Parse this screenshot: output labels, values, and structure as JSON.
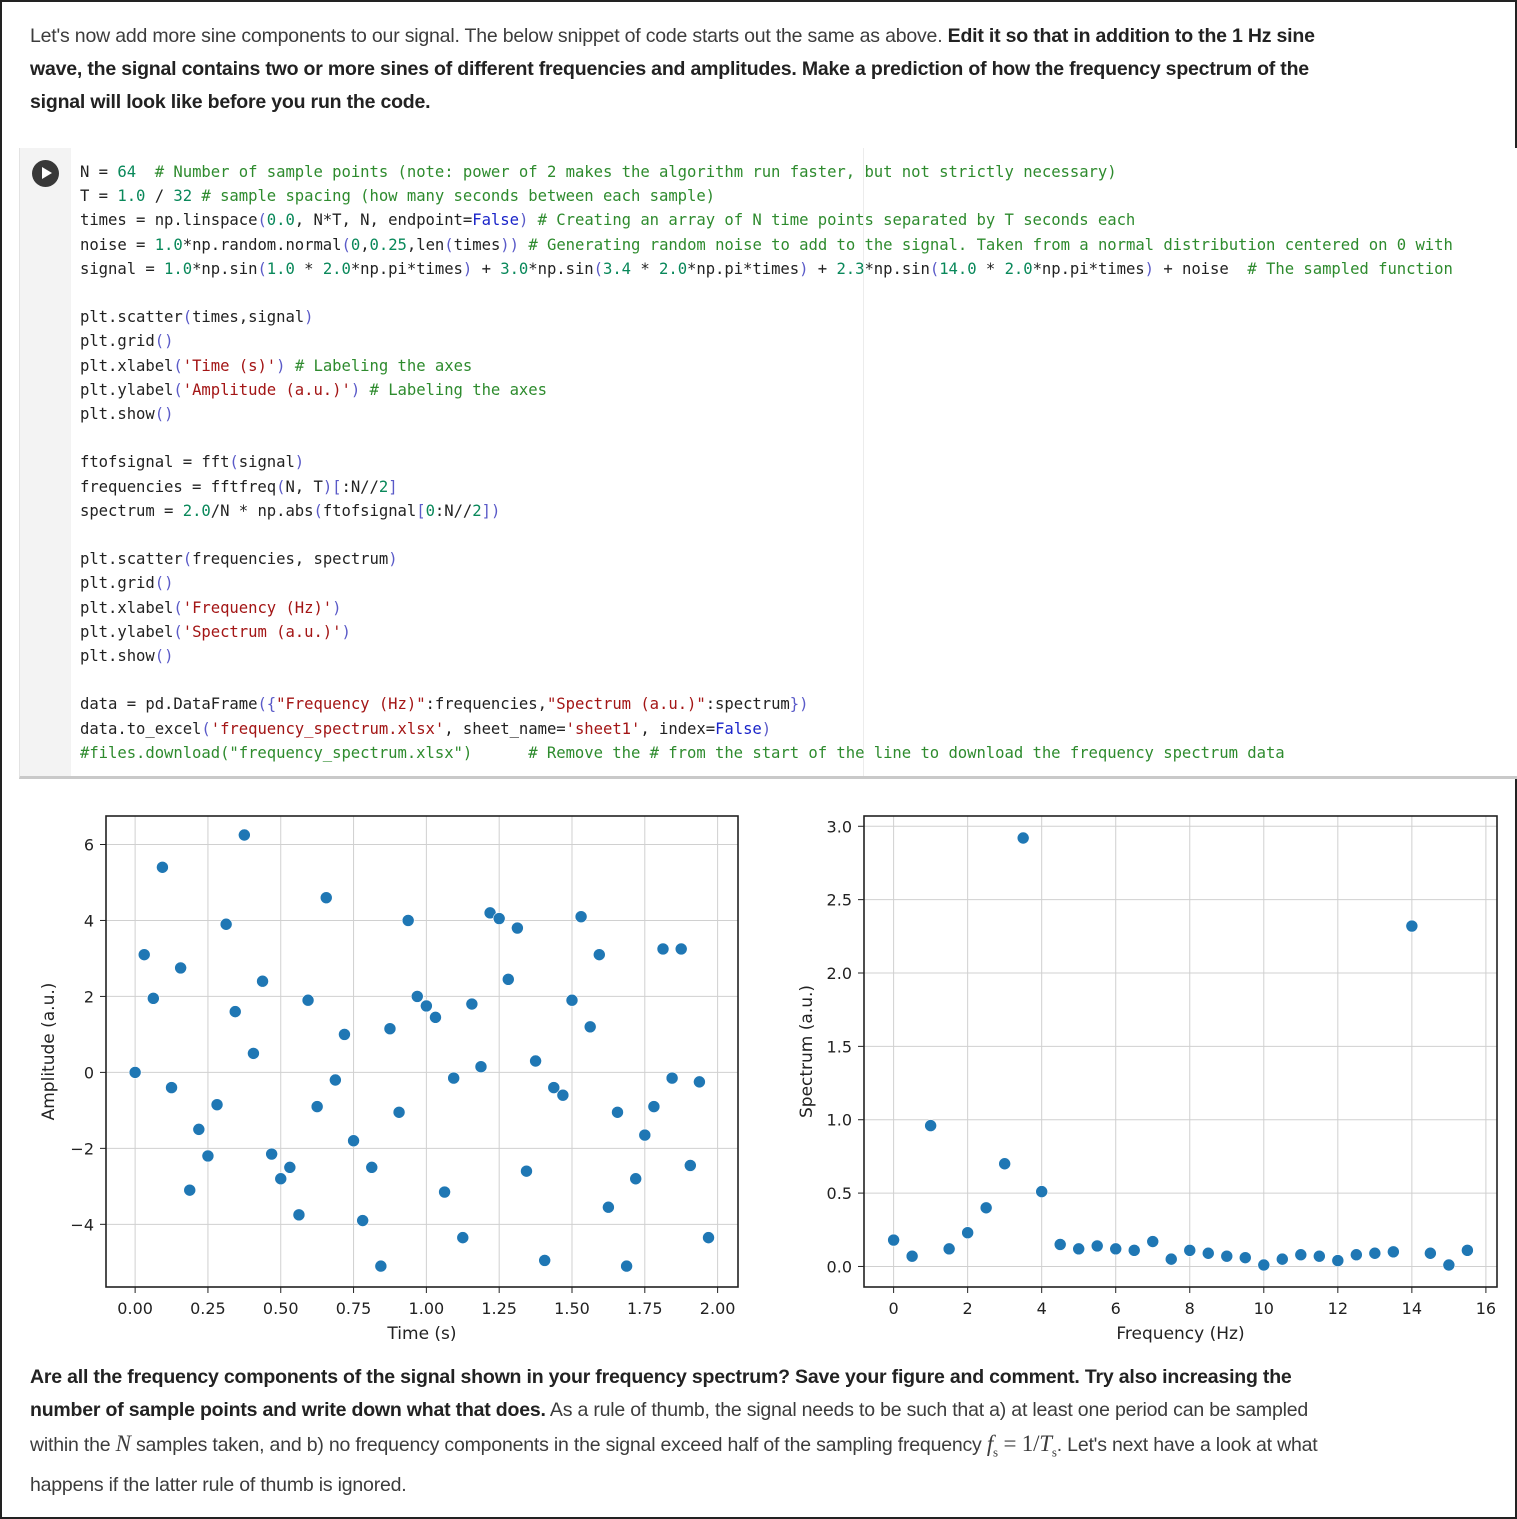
{
  "intro": {
    "plain": "Let's now add more sine components to our signal. The below snippet of code starts out the same as above. ",
    "bold": "Edit it so that in addition to the 1 Hz sine wave, the signal contains two or more sines of different frequencies and amplitudes. Make a prediction of how the frequency spectrum of the signal will look like before you run the code."
  },
  "code_cell": {
    "run_button_label": "Run cell",
    "lines": [
      "N = 64  # Number of sample points (note: power of 2 makes the algorithm run faster, but not strictly necessary)",
      "T = 1.0 / 32 # sample spacing (how many seconds between each sample)",
      "times = np.linspace(0.0, N*T, N, endpoint=False) # Creating an array of N time points separated by T seconds each",
      "noise = 1.0*np.random.normal(0,0.25,len(times)) # Generating random noise to add to the signal. Taken from a normal distribution centered on 0 with",
      "signal = 1.0*np.sin(1.0 * 2.0*np.pi*times) + 3.0*np.sin(3.4 * 2.0*np.pi*times) + 2.3*np.sin(14.0 * 2.0*np.pi*times) + noise  # The sampled function",
      "",
      "plt.scatter(times,signal)",
      "plt.grid()",
      "plt.xlabel('Time (s)') # Labeling the axes",
      "plt.ylabel('Amplitude (a.u.)') # Labeling the axes",
      "plt.show()",
      "",
      "ftofsignal = fft(signal)",
      "frequencies = fftfreq(N, T)[:N//2]",
      "spectrum = 2.0/N * np.abs(ftofsignal[0:N//2])",
      "",
      "plt.scatter(frequencies, spectrum)",
      "plt.grid()",
      "plt.xlabel('Frequency (Hz)')",
      "plt.ylabel('Spectrum (a.u.)')",
      "plt.show()",
      "",
      "data = pd.DataFrame({\"Frequency (Hz)\":frequencies,\"Spectrum (a.u.)\":spectrum})",
      "data.to_excel('frequency_spectrum.xlsx', sheet_name='sheet1', index=False)",
      "#files.download(\"frequency_spectrum.xlsx\")      # Remove the # from the start of the line to download the frequency spectrum data"
    ]
  },
  "colors": {
    "marker": "#1f77b4",
    "grid": "#d0d0d0",
    "code_comment": "#2e8b2e",
    "code_number": "#09885a",
    "code_string": "#a31515",
    "code_keyword": "#1a24c9"
  },
  "chart_data": [
    {
      "type": "scatter",
      "title": "",
      "xlabel": "Time (s)",
      "ylabel": "Amplitude (a.u.)",
      "xlim": [
        -0.1,
        2.07
      ],
      "ylim": [
        -5.65,
        6.75
      ],
      "xticks": [
        "0.00",
        "0.25",
        "0.50",
        "0.75",
        "1.00",
        "1.25",
        "1.50",
        "1.75",
        "2.00"
      ],
      "yticks": [
        "−4",
        "−2",
        "0",
        "2",
        "4",
        "6"
      ],
      "grid": true,
      "legend": null,
      "x": [
        0.0,
        0.03125,
        0.0625,
        0.09375,
        0.125,
        0.15625,
        0.1875,
        0.21875,
        0.25,
        0.28125,
        0.3125,
        0.34375,
        0.375,
        0.40625,
        0.4375,
        0.46875,
        0.5,
        0.53125,
        0.5625,
        0.59375,
        0.625,
        0.65625,
        0.6875,
        0.71875,
        0.75,
        0.78125,
        0.8125,
        0.84375,
        0.875,
        0.90625,
        0.9375,
        0.96875,
        1.0,
        1.03125,
        1.0625,
        1.09375,
        1.125,
        1.15625,
        1.1875,
        1.21875,
        1.25,
        1.28125,
        1.3125,
        1.34375,
        1.375,
        1.40625,
        1.4375,
        1.46875,
        1.5,
        1.53125,
        1.5625,
        1.59375,
        1.625,
        1.65625,
        1.6875,
        1.71875,
        1.75,
        1.78125,
        1.8125,
        1.84375,
        1.875,
        1.90625,
        1.9375,
        1.96875
      ],
      "y": [
        0.0,
        3.1,
        1.95,
        5.4,
        -0.4,
        2.75,
        -3.1,
        -1.5,
        -2.2,
        -0.85,
        3.9,
        1.6,
        6.25,
        0.5,
        2.4,
        -2.15,
        -2.8,
        -2.5,
        -3.75,
        1.9,
        -0.9,
        4.6,
        -0.2,
        1.0,
        -1.8,
        -3.9,
        -2.5,
        -5.1,
        1.15,
        -1.05,
        4.0,
        2.0,
        1.75,
        1.45,
        -3.15,
        -0.15,
        -4.35,
        1.8,
        0.15,
        4.2,
        4.05,
        2.45,
        3.8,
        -2.6,
        0.3,
        -4.95,
        -0.4,
        -0.6,
        1.9,
        4.1,
        1.2,
        3.1,
        -3.55,
        -1.05,
        -5.1,
        -2.8,
        -1.65,
        -0.9,
        3.25,
        -0.15,
        3.25,
        -2.45,
        -0.25,
        -4.35
      ]
    },
    {
      "type": "scatter",
      "title": "",
      "xlabel": "Frequency (Hz)",
      "ylabel": "Spectrum (a.u.)",
      "xlim": [
        -0.8,
        16.3
      ],
      "ylim": [
        -0.14,
        3.07
      ],
      "xticks": [
        "0",
        "2",
        "4",
        "6",
        "8",
        "10",
        "12",
        "14",
        "16"
      ],
      "yticks": [
        "0.0",
        "0.5",
        "1.0",
        "1.5",
        "2.0",
        "2.5",
        "3.0"
      ],
      "grid": true,
      "legend": null,
      "x": [
        0.0,
        0.5,
        1.0,
        1.5,
        2.0,
        2.5,
        3.0,
        3.5,
        4.0,
        4.5,
        5.0,
        5.5,
        6.0,
        6.5,
        7.0,
        7.5,
        8.0,
        8.5,
        9.0,
        9.5,
        10.0,
        10.5,
        11.0,
        11.5,
        12.0,
        12.5,
        13.0,
        13.5,
        14.0,
        14.5,
        15.0,
        15.5
      ],
      "y": [
        0.18,
        0.07,
        0.96,
        0.12,
        0.23,
        0.4,
        0.7,
        2.92,
        0.51,
        0.15,
        0.12,
        0.14,
        0.12,
        0.11,
        0.17,
        0.05,
        0.11,
        0.09,
        0.07,
        0.06,
        0.01,
        0.05,
        0.08,
        0.07,
        0.04,
        0.08,
        0.09,
        0.1,
        2.32,
        0.09,
        0.01,
        0.11
      ]
    }
  ],
  "outro": {
    "bold": "Are all the frequency components of the signal shown in your frequency spectrum? Save your figure and comment. Try also increasing the number of sample points and write down what that does.",
    "plain_1": " As a rule of thumb, the signal needs to be such that a) at least one period can be sampled within the ",
    "math_N": "N",
    "plain_2": " samples taken, and b) no frequency components in the signal exceed half of the sampling frequency ",
    "math_fs": "f",
    "math_fs_sub": "s",
    "math_eq": " = 1/",
    "math_T": "T",
    "math_T_sub": "s",
    "plain_3": ". Let's next have a look at what happens if the latter rule of thumb is ignored."
  }
}
